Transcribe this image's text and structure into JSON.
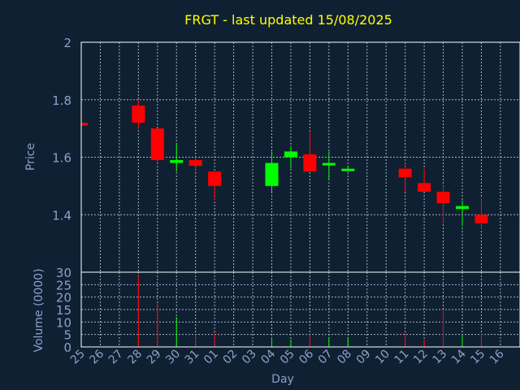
{
  "chart_data": {
    "type": "candlestick",
    "title": "FRGT - last updated 15/08/2025",
    "xlabel": "Day",
    "ylabel_price": "Price",
    "ylabel_volume": "Volume (0000)",
    "x_ticks": [
      "25",
      "26",
      "27",
      "28",
      "29",
      "30",
      "31",
      "01",
      "02",
      "03",
      "04",
      "05",
      "06",
      "07",
      "08",
      "09",
      "10",
      "11",
      "12",
      "13",
      "14",
      "15",
      "16"
    ],
    "price_ylim": [
      1.2,
      2.0
    ],
    "price_ticks": [
      "1.4",
      "1.6",
      "1.8",
      "2"
    ],
    "volume_ylim": [
      0,
      30
    ],
    "volume_ticks": [
      "0",
      "5",
      "10",
      "15",
      "20",
      "25",
      "30"
    ],
    "grid": true,
    "up_color": "#00ff00",
    "down_color": "#ff0000",
    "candles": [
      {
        "day": "25",
        "open": 1.72,
        "high": 1.72,
        "low": 1.71,
        "close": 1.71,
        "volume": 0
      },
      {
        "day": "28",
        "open": 1.78,
        "high": 1.8,
        "low": 1.7,
        "close": 1.72,
        "volume": 28.5
      },
      {
        "day": "29",
        "open": 1.7,
        "high": 1.7,
        "low": 1.58,
        "close": 1.59,
        "volume": 17.5
      },
      {
        "day": "30",
        "open": 1.58,
        "high": 1.65,
        "low": 1.55,
        "close": 1.59,
        "volume": 12
      },
      {
        "day": "31",
        "open": 1.59,
        "high": 1.6,
        "low": 1.55,
        "close": 1.57,
        "volume": 5
      },
      {
        "day": "01",
        "open": 1.55,
        "high": 1.55,
        "low": 1.45,
        "close": 1.5,
        "volume": 6
      },
      {
        "day": "04",
        "open": 1.5,
        "high": 1.62,
        "low": 1.48,
        "close": 1.58,
        "volume": 4
      },
      {
        "day": "05",
        "open": 1.6,
        "high": 1.64,
        "low": 1.56,
        "close": 1.62,
        "volume": 3
      },
      {
        "day": "06",
        "open": 1.61,
        "high": 1.69,
        "low": 1.55,
        "close": 1.55,
        "volume": 5
      },
      {
        "day": "07",
        "open": 1.58,
        "high": 1.62,
        "low": 1.52,
        "close": 1.58,
        "volume": 4
      },
      {
        "day": "08",
        "open": 1.56,
        "high": 1.57,
        "low": 1.55,
        "close": 1.56,
        "volume": 4
      },
      {
        "day": "11",
        "open": 1.56,
        "high": 1.58,
        "low": 1.48,
        "close": 1.53,
        "volume": 6
      },
      {
        "day": "12",
        "open": 1.51,
        "high": 1.56,
        "low": 1.48,
        "close": 1.48,
        "volume": 3
      },
      {
        "day": "13",
        "open": 1.48,
        "high": 1.5,
        "low": 1.37,
        "close": 1.44,
        "volume": 14.5
      },
      {
        "day": "14",
        "open": 1.42,
        "high": 1.45,
        "low": 1.36,
        "close": 1.43,
        "volume": 5
      },
      {
        "day": "15",
        "open": 1.4,
        "high": 1.46,
        "low": 1.35,
        "close": 1.37,
        "volume": 5.5
      }
    ]
  }
}
